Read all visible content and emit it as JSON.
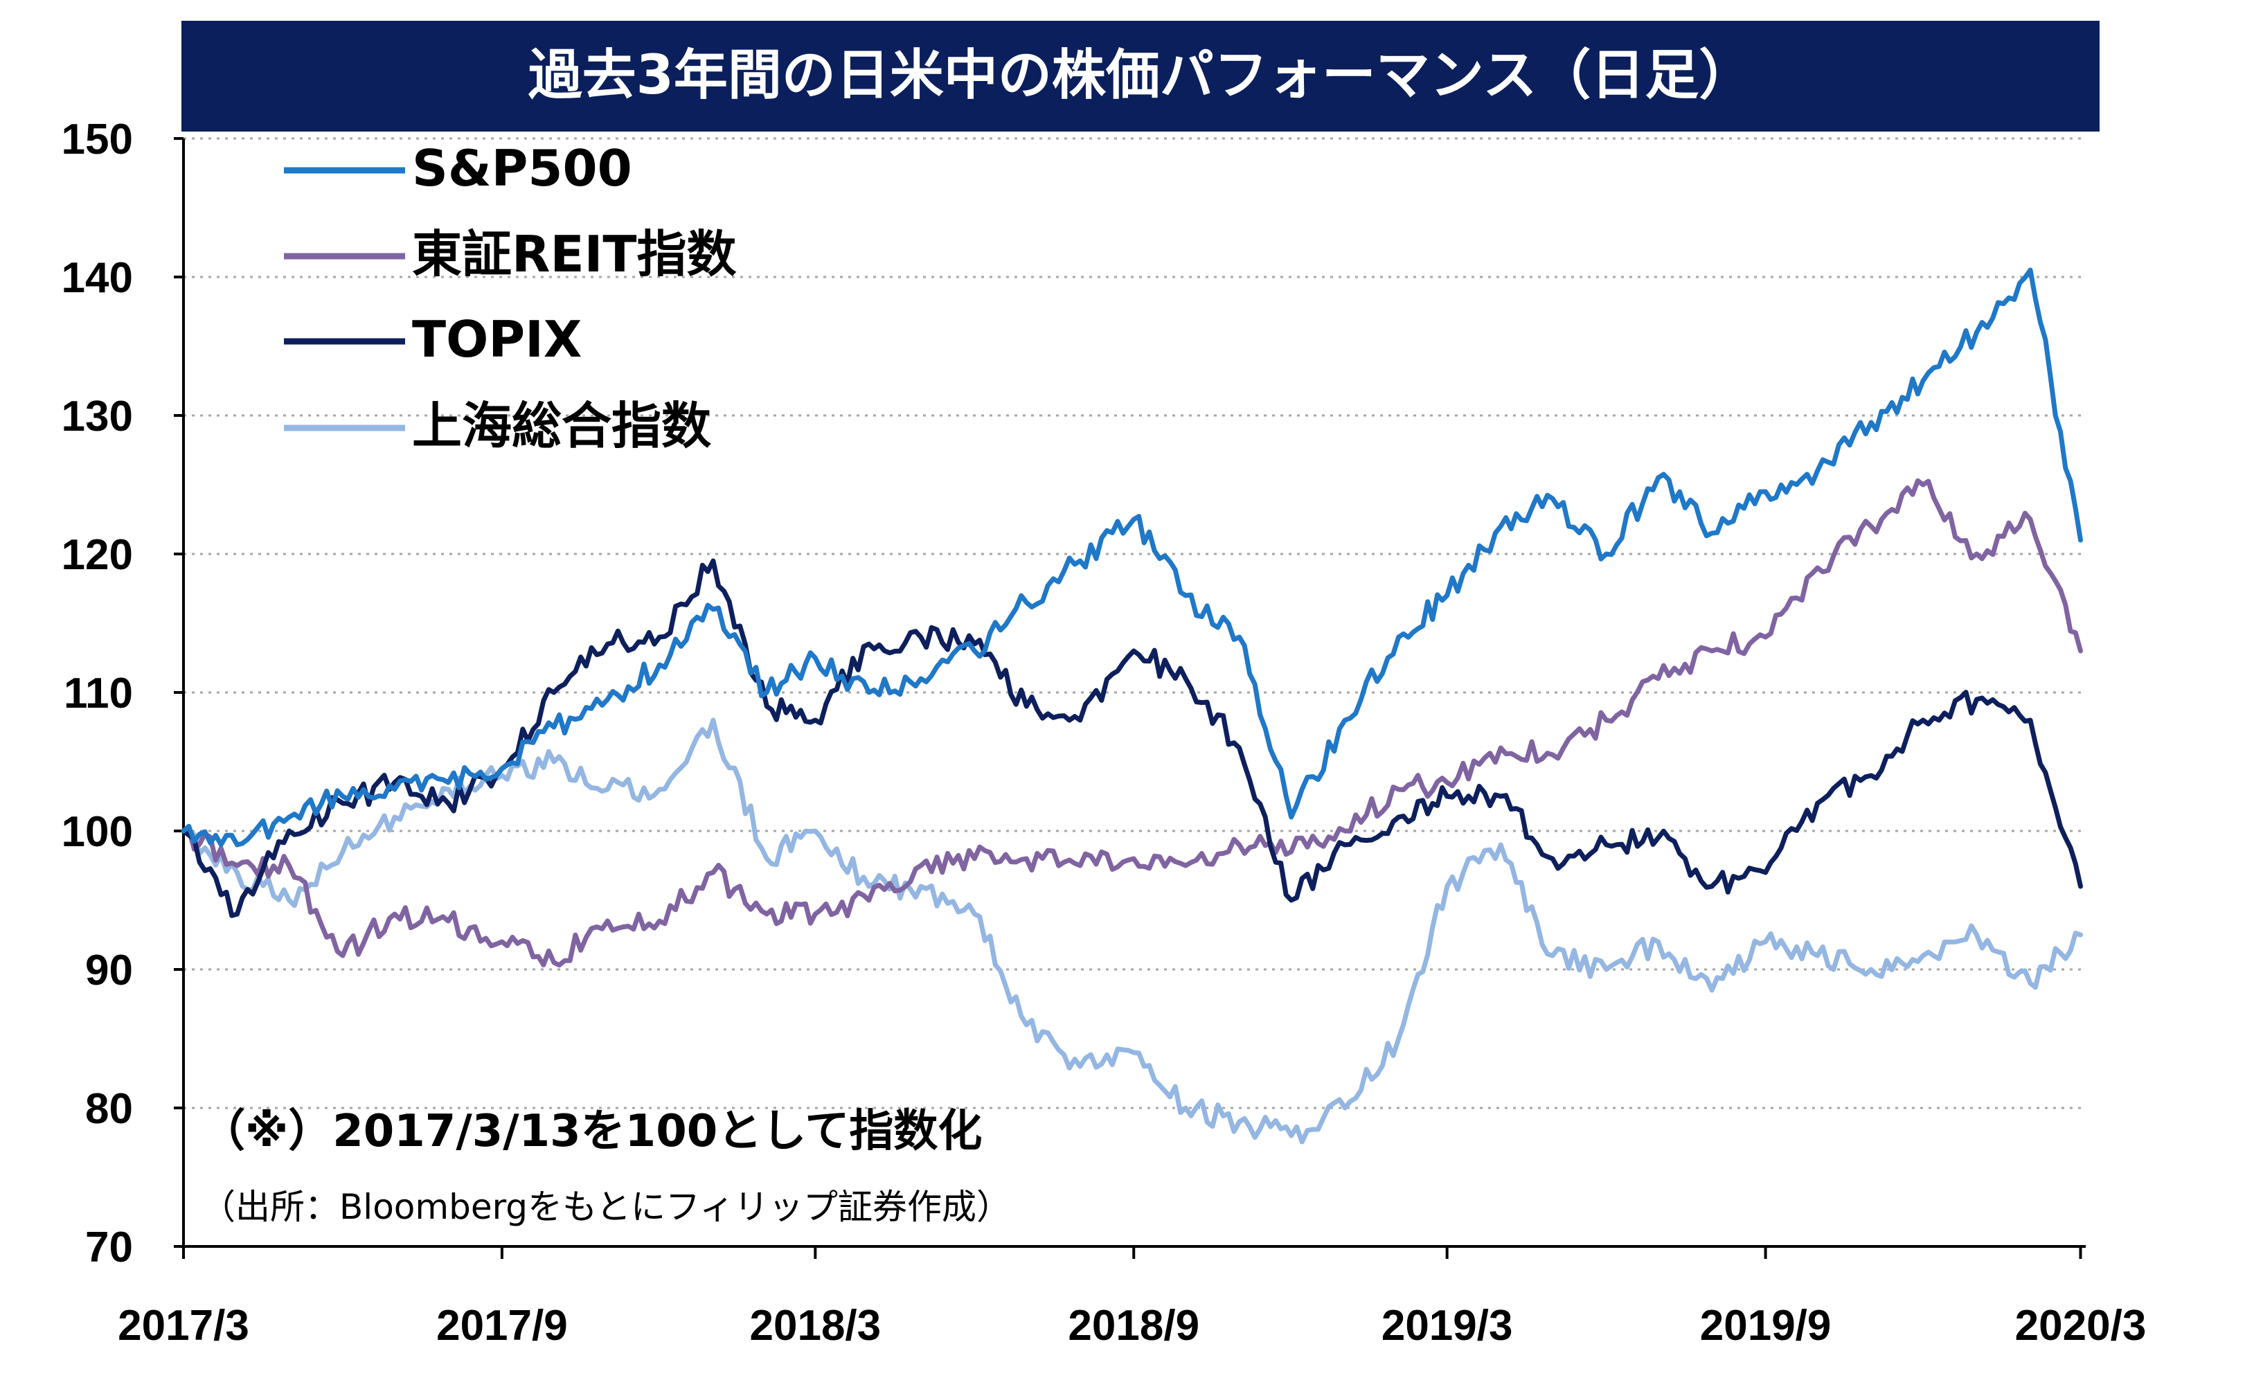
{
  "chart_data": {
    "type": "line",
    "title": "過去3年間の日米中の株価パフォーマンス（日足）",
    "note": "（※）2017/3/13を100として指数化",
    "source": "（出所：Bloombergをもとにフィリップ証券作成）",
    "x_tick_labels": [
      "2017/3",
      "2017/9",
      "2018/3",
      "2018/9",
      "2019/3",
      "2019/9",
      "2020/3"
    ],
    "y_tick_labels": [
      "70",
      "80",
      "90",
      "100",
      "110",
      "120",
      "130",
      "140",
      "150"
    ],
    "ylim": [
      70,
      150
    ],
    "y_ticks": [
      70,
      80,
      90,
      100,
      110,
      120,
      130,
      140,
      150
    ],
    "x_range": [
      "2017-03-13",
      "2020-03-16"
    ],
    "x_ticks": [
      "2017-03-13",
      "2017-09-13",
      "2018-03-13",
      "2018-09-13",
      "2019-03-13",
      "2019-09-13",
      "2020-03-13"
    ],
    "grid": "horizontal-dotted",
    "legend_position": "top-left",
    "x": [
      "2017-03-13",
      "2017-04-13",
      "2017-05-13",
      "2017-06-13",
      "2017-07-13",
      "2017-08-13",
      "2017-09-13",
      "2017-10-13",
      "2017-11-13",
      "2017-12-13",
      "2018-01-13",
      "2018-02-13",
      "2018-03-13",
      "2018-04-13",
      "2018-05-13",
      "2018-06-13",
      "2018-07-13",
      "2018-08-13",
      "2018-09-13",
      "2018-10-13",
      "2018-11-13",
      "2018-12-13",
      "2019-01-13",
      "2019-02-13",
      "2019-03-13",
      "2019-04-13",
      "2019-05-13",
      "2019-06-13",
      "2019-07-13",
      "2019-08-13",
      "2019-09-13",
      "2019-10-13",
      "2019-11-13",
      "2019-12-13",
      "2020-01-13",
      "2020-02-13",
      "2020-03-13"
    ],
    "series": [
      {
        "name": "S&P500",
        "color": "#1f78c8",
        "values": [
          100,
          99,
          101,
          102.5,
          103,
          103.5,
          104.5,
          107.5,
          109.5,
          112,
          116,
          110,
          112.5,
          110,
          111,
          113,
          116.5,
          119.5,
          122.5,
          117,
          114,
          101,
          108,
          114,
          117,
          122,
          124,
          120,
          125.5,
          121.5,
          124.5,
          126,
          129.5,
          132.5,
          136,
          140.5,
          121
        ]
      },
      {
        "name": "東証REIT指数",
        "color": "#8064a2",
        "values": [
          100,
          97.5,
          97.5,
          91,
          94,
          93.5,
          92,
          90.5,
          93.5,
          93.5,
          97,
          94,
          94,
          95,
          97.5,
          98,
          98,
          97.5,
          98,
          97.5,
          99,
          98.5,
          100,
          103,
          103.5,
          106,
          105.5,
          108,
          111,
          113,
          114,
          119,
          122,
          125,
          120,
          122.5,
          113
        ]
      },
      {
        "name": "TOPIX",
        "color": "#0d1f5c",
        "values": [
          100,
          94,
          100,
          102,
          103.5,
          102,
          104.5,
          110,
          113.5,
          114,
          119.5,
          109,
          108,
          113.5,
          114,
          113.5,
          109,
          108,
          113,
          111,
          106,
          95,
          99,
          101,
          102.5,
          102.5,
          98,
          99,
          99.5,
          96,
          97,
          102,
          104,
          108,
          109.5,
          108,
          96
        ]
      },
      {
        "name": "上海総合指数",
        "color": "#94b6e2",
        "values": [
          100,
          97,
          95,
          98.5,
          101,
          103,
          104,
          105,
          103,
          103,
          108,
          98,
          100,
          96,
          96,
          94,
          86,
          83,
          84,
          80,
          79,
          78,
          80,
          85,
          96,
          99,
          91,
          90,
          92,
          88.5,
          92,
          91,
          90,
          91,
          92.5,
          89,
          92.5
        ]
      }
    ]
  }
}
